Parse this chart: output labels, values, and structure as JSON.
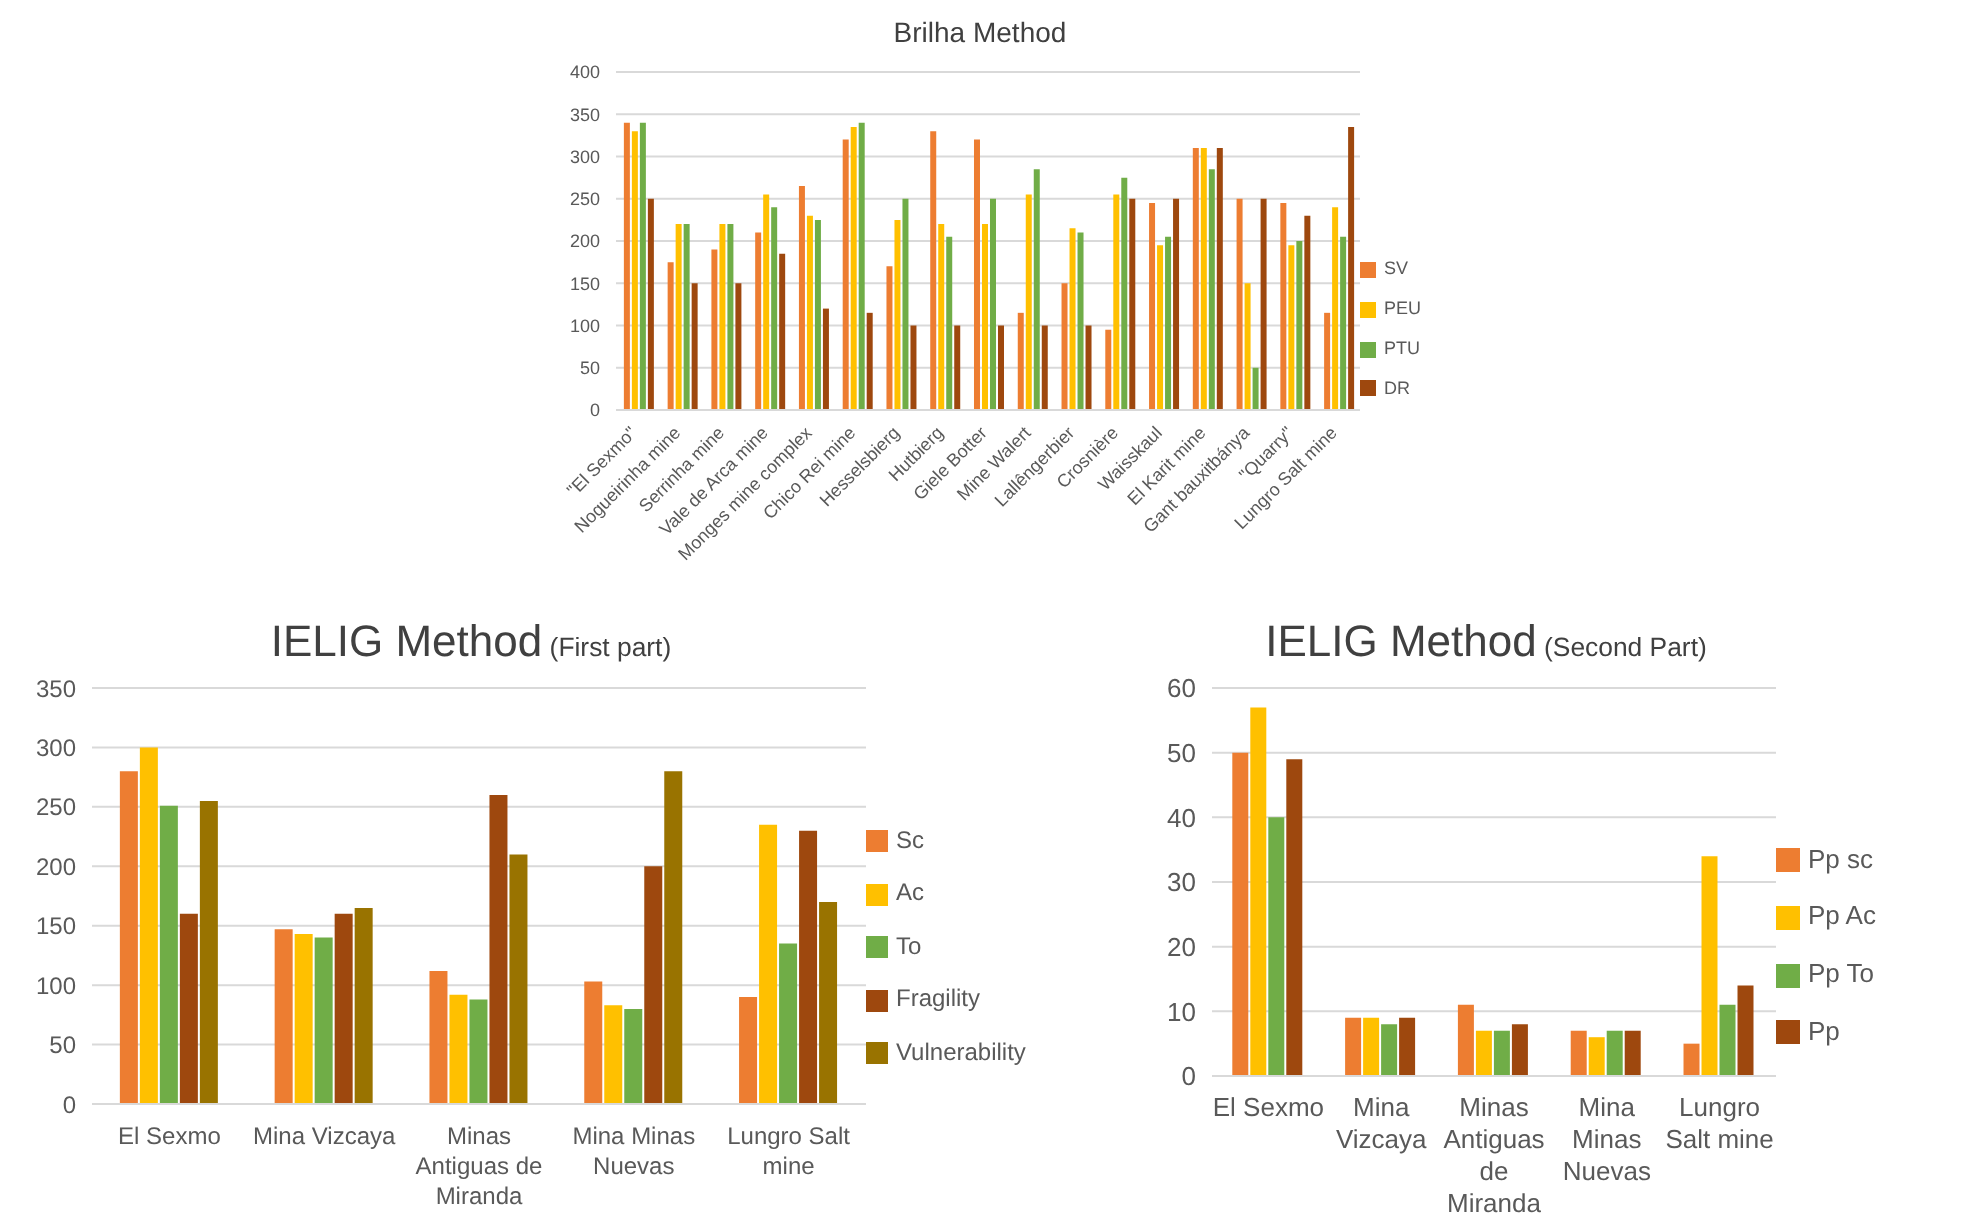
{
  "chart_data": [
    {
      "type": "bar",
      "title": "Brilha Method",
      "categories": [
        "\"El Sexmo\"",
        "Nogueirinha mine",
        "Serrinha mine",
        "Vale de Arca mine",
        "Monges  mine complex",
        "Chico Rei mine",
        "Hesselsbierg",
        "Hutbierg",
        "Giele Botter",
        "Mine Walert",
        "Lallêngerbier",
        "Crosnière",
        "Waisskaul",
        "El Karit mine",
        "Gant bauxitbánya",
        "\"Quarry\"",
        "Lungro Salt mine"
      ],
      "series": [
        {
          "name": "SV",
          "color": "#ed7d31",
          "values": [
            340,
            175,
            190,
            210,
            265,
            320,
            170,
            330,
            320,
            115,
            150,
            95,
            245,
            310,
            250,
            245,
            115
          ]
        },
        {
          "name": "PEU",
          "color": "#ffc000",
          "values": [
            330,
            220,
            220,
            255,
            230,
            335,
            225,
            220,
            220,
            255,
            215,
            255,
            195,
            310,
            150,
            195,
            240
          ]
        },
        {
          "name": "PTU",
          "color": "#70ad47",
          "values": [
            340,
            220,
            220,
            240,
            225,
            340,
            250,
            205,
            250,
            285,
            210,
            275,
            205,
            285,
            50,
            200,
            205
          ]
        },
        {
          "name": "DR",
          "color": "#9e480e",
          "values": [
            250,
            150,
            150,
            185,
            120,
            115,
            100,
            100,
            100,
            100,
            100,
            250,
            250,
            310,
            250,
            230,
            335
          ]
        }
      ],
      "ylim": [
        0,
        400
      ],
      "yticks": [
        0,
        50,
        100,
        150,
        200,
        250,
        300,
        350,
        400
      ],
      "grid": "y",
      "legend": "right"
    },
    {
      "type": "bar",
      "title": "IELIG Method",
      "subtitle": "(First part)",
      "categories": [
        "El Sexmo",
        "Mina Vizcaya",
        "Minas Antiguas de Miranda",
        "Mina Minas Nuevas",
        "Lungro Salt mine"
      ],
      "series": [
        {
          "name": "Sc",
          "color": "#ed7d31",
          "values": [
            280,
            147,
            112,
            103,
            90
          ]
        },
        {
          "name": "Ac",
          "color": "#ffc000",
          "values": [
            300,
            143,
            92,
            83,
            235
          ]
        },
        {
          "name": "To",
          "color": "#70ad47",
          "values": [
            251,
            140,
            88,
            80,
            135
          ]
        },
        {
          "name": "Fragility",
          "color": "#9e480e",
          "values": [
            160,
            160,
            260,
            200,
            230
          ]
        },
        {
          "name": "Vulnerability",
          "color": "#997300",
          "values": [
            255,
            165,
            210,
            280,
            170
          ]
        }
      ],
      "ylim": [
        0,
        350
      ],
      "yticks": [
        0,
        50,
        100,
        150,
        200,
        250,
        300,
        350
      ],
      "grid": "y",
      "legend": "right"
    },
    {
      "type": "bar",
      "title": "IELIG Method",
      "subtitle": "(Second Part)",
      "categories": [
        "El Sexmo",
        "Mina Vizcaya",
        "Minas Antiguas de Miranda",
        "Mina Minas Nuevas",
        "Lungro Salt mine"
      ],
      "series": [
        {
          "name": "Pp sc",
          "color": "#ed7d31",
          "values": [
            50,
            9,
            11,
            7,
            5
          ]
        },
        {
          "name": "Pp Ac",
          "color": "#ffc000",
          "values": [
            57,
            9,
            7,
            6,
            34
          ]
        },
        {
          "name": "Pp To",
          "color": "#70ad47",
          "values": [
            40,
            8,
            7,
            7,
            11
          ]
        },
        {
          "name": "Pp",
          "color": "#9e480e",
          "values": [
            49,
            9,
            8,
            7,
            14
          ]
        }
      ],
      "ylim": [
        0,
        60
      ],
      "yticks": [
        0,
        10,
        20,
        30,
        40,
        50,
        60
      ],
      "grid": "y",
      "legend": "right"
    }
  ]
}
